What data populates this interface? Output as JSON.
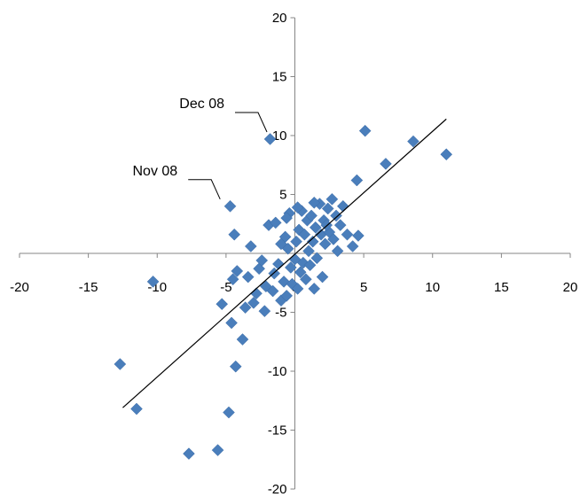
{
  "chart_data": {
    "type": "scatter",
    "title": "",
    "xlabel": "",
    "ylabel": "",
    "xlim": [
      -20,
      20
    ],
    "ylim": [
      -20,
      20
    ],
    "x_ticks": [
      -20,
      -15,
      -10,
      -5,
      0,
      5,
      10,
      15,
      20
    ],
    "y_ticks": [
      -20,
      -15,
      -10,
      -5,
      5,
      10,
      15,
      20
    ],
    "x_tick_labels": [
      "-20",
      "-15",
      "-10",
      "-5",
      "0",
      "5",
      "10",
      "15",
      "20"
    ],
    "y_tick_labels": [
      "-20",
      "-15",
      "-10",
      "-5",
      "5",
      "10",
      "15",
      "20"
    ],
    "grid": false,
    "legend": "none",
    "marker": "diamond",
    "marker_color": "#4a7ebb",
    "trendline": {
      "x": [
        -12.5,
        11.0
      ],
      "y": [
        -13.1,
        11.4
      ]
    },
    "annotations": [
      {
        "text": "Dec 08",
        "x": -1.9,
        "y": 9.7
      },
      {
        "text": "Nov 08",
        "x": -5.3,
        "y": 4.0
      }
    ],
    "series": [
      {
        "points": [
          [
            -12.7,
            -9.4
          ],
          [
            -11.5,
            -13.2
          ],
          [
            -10.3,
            -2.4
          ],
          [
            -7.7,
            -17.0
          ],
          [
            -5.6,
            -16.7
          ],
          [
            -5.3,
            -4.3
          ],
          [
            -4.8,
            -13.5
          ],
          [
            -4.6,
            -5.9
          ],
          [
            -4.7,
            4.0
          ],
          [
            -4.4,
            1.6
          ],
          [
            -4.3,
            -9.6
          ],
          [
            -4.5,
            -2.2
          ],
          [
            -4.2,
            -1.5
          ],
          [
            -3.8,
            -7.3
          ],
          [
            -3.6,
            -4.6
          ],
          [
            -3.4,
            -2.0
          ],
          [
            -3.2,
            0.6
          ],
          [
            -3.0,
            -4.2
          ],
          [
            -2.6,
            -1.3
          ],
          [
            -2.4,
            -0.6
          ],
          [
            -2.2,
            -4.9
          ],
          [
            -2.1,
            -2.8
          ],
          [
            -1.9,
            2.4
          ],
          [
            -1.8,
            9.7
          ],
          [
            -1.6,
            -3.2
          ],
          [
            -1.5,
            -1.7
          ],
          [
            -1.4,
            2.6
          ],
          [
            -1.2,
            -0.9
          ],
          [
            -1.0,
            -4.0
          ],
          [
            -0.8,
            -2.4
          ],
          [
            -0.7,
            1.4
          ],
          [
            -0.6,
            -3.6
          ],
          [
            -0.5,
            0.4
          ],
          [
            -0.4,
            3.4
          ],
          [
            -0.3,
            -1.2
          ],
          [
            -0.2,
            -2.6
          ],
          [
            0.0,
            -0.5
          ],
          [
            0.1,
            1.0
          ],
          [
            0.2,
            -3.0
          ],
          [
            0.3,
            2.0
          ],
          [
            0.4,
            -1.6
          ],
          [
            0.5,
            3.6
          ],
          [
            0.6,
            -0.8
          ],
          [
            0.7,
            1.6
          ],
          [
            0.8,
            -2.2
          ],
          [
            0.9,
            2.8
          ],
          [
            1.0,
            0.2
          ],
          [
            1.1,
            -1.0
          ],
          [
            1.2,
            3.2
          ],
          [
            1.3,
            1.0
          ],
          [
            1.4,
            -3.0
          ],
          [
            1.5,
            2.2
          ],
          [
            1.6,
            -0.4
          ],
          [
            1.8,
            4.2
          ],
          [
            1.9,
            1.6
          ],
          [
            2.0,
            -2.0
          ],
          [
            2.1,
            2.8
          ],
          [
            2.2,
            0.8
          ],
          [
            2.4,
            3.8
          ],
          [
            2.5,
            1.8
          ],
          [
            2.7,
            4.6
          ],
          [
            2.8,
            1.2
          ],
          [
            3.0,
            3.2
          ],
          [
            3.1,
            0.2
          ],
          [
            3.3,
            2.4
          ],
          [
            3.5,
            4.0
          ],
          [
            3.8,
            1.6
          ],
          [
            4.2,
            0.6
          ],
          [
            4.5,
            6.2
          ],
          [
            4.6,
            1.5
          ],
          [
            5.1,
            10.4
          ],
          [
            6.6,
            7.6
          ],
          [
            8.6,
            9.5
          ],
          [
            11.0,
            8.4
          ],
          [
            -1.0,
            0.8
          ],
          [
            -0.6,
            3.0
          ],
          [
            0.2,
            3.9
          ],
          [
            1.4,
            4.3
          ],
          [
            2.3,
            2.4
          ],
          [
            -2.8,
            -3.4
          ]
        ]
      }
    ]
  }
}
